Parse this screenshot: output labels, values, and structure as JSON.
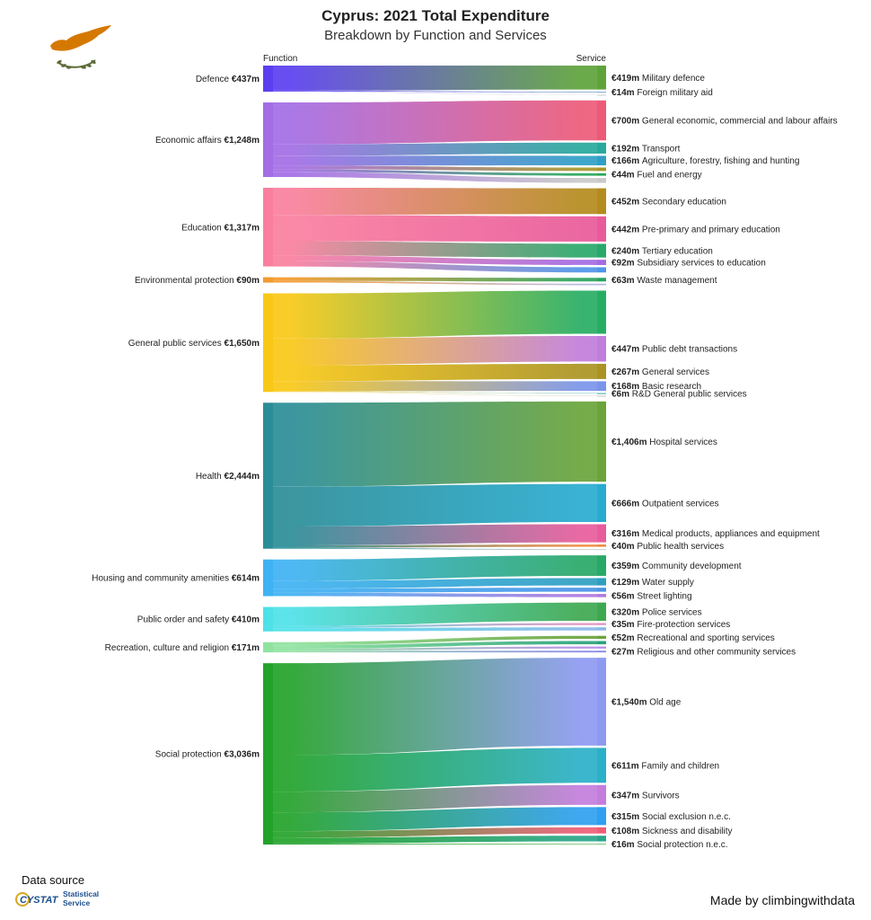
{
  "header": {
    "title": "Cyprus: 2021 Total Expenditure",
    "subtitle": "Breakdown by Function and Services"
  },
  "footer": {
    "data_source_label": "Data source",
    "source_org_line1": "Statistical",
    "source_org_line2": "Service",
    "logo_text": "CYSTAT",
    "made_by": "Made by climbingwithdata"
  },
  "icons": [
    "cyprus-flag-icon",
    "cystat-logo-icon"
  ],
  "chart_data": {
    "type": "sankey",
    "title": "Cyprus: 2021 Total Expenditure",
    "subtitle": "Breakdown by Function and Services",
    "unit": "€m",
    "left_header": "Function",
    "right_header": "Service",
    "functions": [
      {
        "name": "Defence",
        "value": 437,
        "label_value": "€437m",
        "color": "#5b3ef0",
        "services": [
          {
            "name": "Military defence",
            "value": 419,
            "label": "€419m",
            "color": "#5ea33a"
          },
          {
            "name": "Foreign military aid",
            "value": 14,
            "label": "€14m",
            "color": "#7fa0d0"
          },
          {
            "name": "",
            "value": 4,
            "label": "",
            "color": "#cccccc"
          }
        ]
      },
      {
        "name": "Economic affairs",
        "value": 1248,
        "label_value": "€1,248m",
        "color": "#a36de5",
        "services": [
          {
            "name": "General economic, commercial and labour affairs",
            "value": 700,
            "label": "€700m",
            "color": "#ec5a78"
          },
          {
            "name": "Transport",
            "value": 192,
            "label": "€192m",
            "color": "#27a99c"
          },
          {
            "name": "Agriculture, forestry, fishing and hunting",
            "value": 166,
            "label": "€166m",
            "color": "#2f9fc6"
          },
          {
            "name": "",
            "value": 60,
            "label": "",
            "color": "#a8982a"
          },
          {
            "name": "Fuel and energy",
            "value": 44,
            "label": "€44m",
            "color": "#27a85a"
          },
          {
            "name": "",
            "value": 86,
            "label": "",
            "color": "#c9c9c9"
          }
        ]
      },
      {
        "name": "Education",
        "value": 1317,
        "label_value": "€1,317m",
        "color": "#fa7f9e",
        "services": [
          {
            "name": "Secondary education",
            "value": 452,
            "label": "€452m",
            "color": "#b48b1d"
          },
          {
            "name": "Pre-primary and primary education",
            "value": 442,
            "label": "€442m",
            "color": "#e95a9a"
          },
          {
            "name": "Tertiary education",
            "value": 240,
            "label": "€240m",
            "color": "#29a86a"
          },
          {
            "name": "Subsidiary services to education",
            "value": 92,
            "label": "€92m",
            "color": "#a46ae2"
          },
          {
            "name": "",
            "value": 91,
            "label": "",
            "color": "#4f95e8"
          }
        ]
      },
      {
        "name": "Environmental protection",
        "value": 90,
        "label_value": "€90m",
        "color": "#f39a2c",
        "services": [
          {
            "name": "Waste management",
            "value": 63,
            "label": "€63m",
            "color": "#2aa45f"
          },
          {
            "name": "",
            "value": 27,
            "label": "",
            "color": "#b6b6e0"
          }
        ]
      },
      {
        "name": "General public services",
        "value": 1650,
        "label_value": "€1,650m",
        "color": "#f9c816",
        "services": [
          {
            "name": "",
            "value": 756,
            "label": "",
            "color": "#27ad63"
          },
          {
            "name": "Public debt transactions",
            "value": 447,
            "label": "€447m",
            "color": "#c17ddc"
          },
          {
            "name": "General services",
            "value": 267,
            "label": "€267m",
            "color": "#aa9322"
          },
          {
            "name": "Basic research",
            "value": 168,
            "label": "€168m",
            "color": "#7a94ea"
          },
          {
            "name": "R&D General public services",
            "value": 6,
            "label": "€6m",
            "color": "#2fa89f"
          },
          {
            "name": "",
            "value": 6,
            "label": "",
            "color": "#c4c4c4"
          }
        ]
      },
      {
        "name": "Health",
        "value": 2444,
        "label_value": "€2,444m",
        "color": "#2a8d97",
        "services": [
          {
            "name": "Hospital services",
            "value": 1406,
            "label": "€1,406m",
            "color": "#6aa43a"
          },
          {
            "name": "Outpatient services",
            "value": 666,
            "label": "€666m",
            "color": "#29abd0"
          },
          {
            "name": "Medical products, appliances and equipment",
            "value": 316,
            "label": "€316m",
            "color": "#e85c9c"
          },
          {
            "name": "Public health services",
            "value": 40,
            "label": "€40m",
            "color": "#f08a3a"
          },
          {
            "name": "",
            "value": 16,
            "label": "",
            "color": "#c9c9c9"
          }
        ]
      },
      {
        "name": "Housing and community amenities",
        "value": 614,
        "label_value": "€614m",
        "color": "#3fb2f3",
        "services": [
          {
            "name": "Community development",
            "value": 359,
            "label": "€359m",
            "color": "#29a866"
          },
          {
            "name": "Water supply",
            "value": 129,
            "label": "€129m",
            "color": "#2e9fc0"
          },
          {
            "name": "",
            "value": 70,
            "label": "",
            "color": "#4a93e6"
          },
          {
            "name": "Street lighting",
            "value": 56,
            "label": "€56m",
            "color": "#b179e0"
          }
        ]
      },
      {
        "name": "Public order and safety",
        "value": 410,
        "label_value": "€410m",
        "color": "#4ee1e8",
        "services": [
          {
            "name": "Police services",
            "value": 320,
            "label": "€320m",
            "color": "#3ea850"
          },
          {
            "name": "Fire-protection services",
            "value": 35,
            "label": "€35m",
            "color": "#e28fbd"
          },
          {
            "name": "",
            "value": 55,
            "label": "",
            "color": "#89b8e8"
          }
        ]
      },
      {
        "name": "Recreation, culture and religion",
        "value": 171,
        "label_value": "€171m",
        "color": "#8fe39f",
        "services": [
          {
            "name": "Recreational and sporting services",
            "value": 52,
            "label": "€52m",
            "color": "#6aa43a"
          },
          {
            "name": "",
            "value": 57,
            "label": "",
            "color": "#2aa37a"
          },
          {
            "name": "",
            "value": 35,
            "label": "",
            "color": "#b68fe6"
          },
          {
            "name": "Religious and other community services",
            "value": 27,
            "label": "€27m",
            "color": "#7f7fe6"
          }
        ]
      },
      {
        "name": "Social protection",
        "value": 3036,
        "label_value": "€3,036m",
        "color": "#23a22a",
        "services": [
          {
            "name": "Old age",
            "value": 1540,
            "label": "€1,540m",
            "color": "#8e9af2"
          },
          {
            "name": "Family and children",
            "value": 611,
            "label": "€611m",
            "color": "#2bb0c8"
          },
          {
            "name": "Survivors",
            "value": 347,
            "label": "€347m",
            "color": "#c47ddc"
          },
          {
            "name": "Social exclusion n.e.c.",
            "value": 315,
            "label": "€315m",
            "color": "#2f9ff0"
          },
          {
            "name": "Sickness and disability",
            "value": 108,
            "label": "€108m",
            "color": "#ef5d76"
          },
          {
            "name": "",
            "value": 99,
            "label": "",
            "color": "#2aa58a"
          },
          {
            "name": "Social protection n.e.c.",
            "value": 16,
            "label": "€16m",
            "color": "#7cc67a"
          }
        ]
      }
    ]
  }
}
